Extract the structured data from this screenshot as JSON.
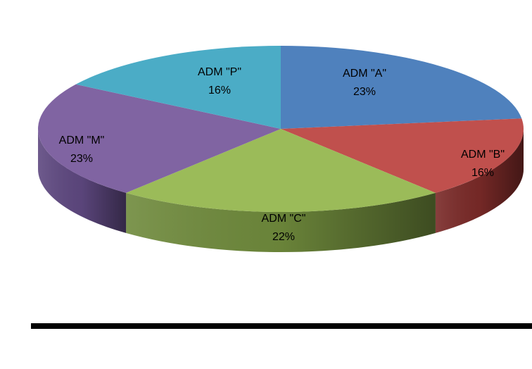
{
  "chart_data": {
    "type": "pie",
    "style": "3d",
    "title": "",
    "slices": [
      {
        "label": "ADM \"A\"",
        "percent_label": "23%",
        "value": 23,
        "color": "#4F81BD",
        "side_color": "#3A5F8C"
      },
      {
        "label": "ADM \"B\"",
        "percent_label": "16%",
        "value": 16,
        "color": "#C0504D",
        "side_color": "#7A2A28"
      },
      {
        "label": "ADM \"C\"",
        "percent_label": "22%",
        "value": 22,
        "color": "#9BBB59",
        "side_color": "#6F8A3C"
      },
      {
        "label": "ADM \"M\"",
        "percent_label": "23%",
        "value": 23,
        "color": "#8064A2",
        "side_color": "#5E4880"
      },
      {
        "label": "ADM \"P\"",
        "percent_label": "16%",
        "value": 16,
        "color": "#4BACC6",
        "side_color": "#2E8299"
      }
    ],
    "legend": "none"
  }
}
